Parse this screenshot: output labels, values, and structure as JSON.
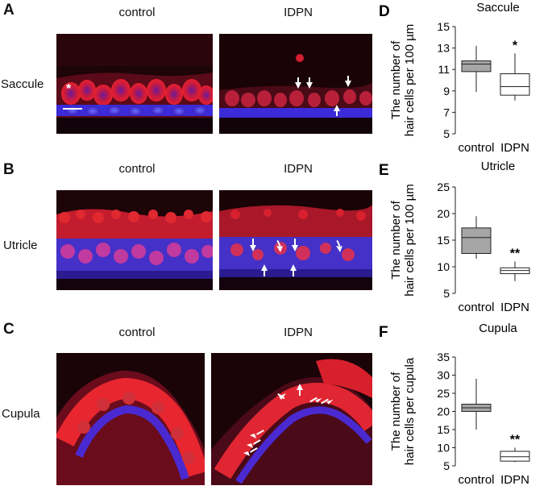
{
  "panels": {
    "A": {
      "letter": "A",
      "row_label": "Saccule"
    },
    "B": {
      "letter": "B",
      "row_label": "Utricle"
    },
    "C": {
      "letter": "C",
      "row_label": "Cupula"
    }
  },
  "column_labels": {
    "control": "control",
    "idpn": "IDPN"
  },
  "asterisk_marker": "*",
  "colors": {
    "red_stain": "#e0202a",
    "blue_stain": "#3a2bd8",
    "background": "#1a0508",
    "control_box": "#a6a6a6",
    "idpn_box": "#ffffff"
  },
  "chart_data": [
    {
      "letter": "D",
      "type": "box",
      "title": "Saccule",
      "ylabel_line1": "The number of",
      "ylabel_line2": "hair cells per 100 µm",
      "ylim": [
        5,
        15
      ],
      "yticks": [
        5,
        7,
        9,
        11,
        13,
        15
      ],
      "categories": [
        "control",
        "IDPN"
      ],
      "boxes": [
        {
          "category": "control",
          "min": 8.9,
          "q1": 10.8,
          "median": 11.5,
          "q3": 11.8,
          "max": 13.2
        },
        {
          "category": "IDPN",
          "min": 8.1,
          "q1": 8.6,
          "median": 9.4,
          "q3": 10.6,
          "max": 12.5
        }
      ],
      "significance": "*"
    },
    {
      "letter": "E",
      "type": "box",
      "title": "Utricle",
      "ylabel_line1": "The number of",
      "ylabel_line2": "hair cells per 100 µm",
      "ylim": [
        5,
        25
      ],
      "yticks": [
        5,
        10,
        15,
        20,
        25
      ],
      "categories": [
        "control",
        "IDPN"
      ],
      "boxes": [
        {
          "category": "control",
          "min": 11.5,
          "q1": 12.5,
          "median": 15.5,
          "q3": 17.3,
          "max": 19.5
        },
        {
          "category": "IDPN",
          "min": 7.3,
          "q1": 8.7,
          "median": 9.3,
          "q3": 9.8,
          "max": 11.0
        }
      ],
      "significance": "**"
    },
    {
      "letter": "F",
      "type": "box",
      "title": "Cupula",
      "ylabel_line1": "The number of",
      "ylabel_line2": "hair cells per cupula",
      "ylim": [
        5,
        35
      ],
      "yticks": [
        5,
        10,
        15,
        20,
        25,
        30,
        35
      ],
      "categories": [
        "control",
        "IDPN"
      ],
      "boxes": [
        {
          "category": "control",
          "min": 15.0,
          "q1": 20.0,
          "median": 21.0,
          "q3": 22.0,
          "max": 29.0
        },
        {
          "category": "IDPN",
          "min": 6.0,
          "q1": 6.3,
          "median": 7.5,
          "q3": 9.0,
          "max": 10.0
        }
      ],
      "significance": "**"
    }
  ]
}
